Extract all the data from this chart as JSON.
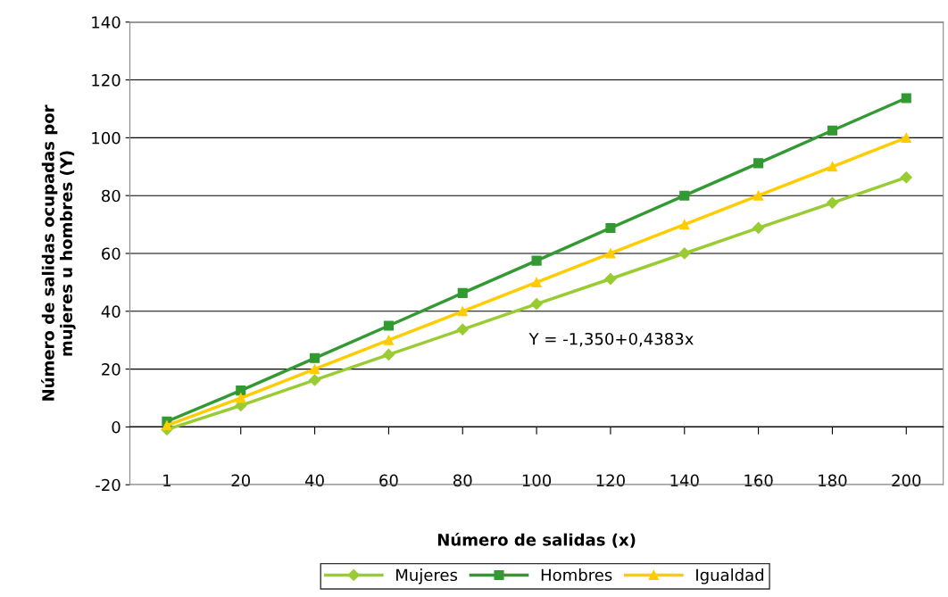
{
  "chart_data": {
    "type": "line",
    "categories": [
      "1",
      "20",
      "40",
      "60",
      "80",
      "100",
      "120",
      "140",
      "160",
      "180",
      "200"
    ],
    "series": [
      {
        "name": "Mujeres",
        "color": "#99cc33",
        "marker": "diamond",
        "values": [
          -0.9,
          7.4,
          16.2,
          25.0,
          33.7,
          42.5,
          51.2,
          60.0,
          68.8,
          77.5,
          86.3
        ]
      },
      {
        "name": "Hombres",
        "color": "#339933",
        "marker": "square",
        "values": [
          1.9,
          12.6,
          23.8,
          35.0,
          46.3,
          57.5,
          68.8,
          80.0,
          91.2,
          102.5,
          113.7
        ]
      },
      {
        "name": "Igualdad",
        "color": "#ffcc00",
        "marker": "triangle",
        "values": [
          0.5,
          10,
          20,
          30,
          40,
          50,
          60,
          70,
          80,
          90,
          100
        ]
      }
    ],
    "xlabel": "Número de salidas (x)",
    "ylabel": "Número de salidas ocupadas por\nmujeres u hombres (Y)",
    "ylim": [
      -20,
      140
    ],
    "yticks": [
      -20,
      0,
      20,
      40,
      60,
      80,
      100,
      120,
      140
    ],
    "grid": "y",
    "legend": "bottom",
    "line_style": "solid",
    "annotations": [
      "Y = -1,350+0,4383x"
    ]
  }
}
